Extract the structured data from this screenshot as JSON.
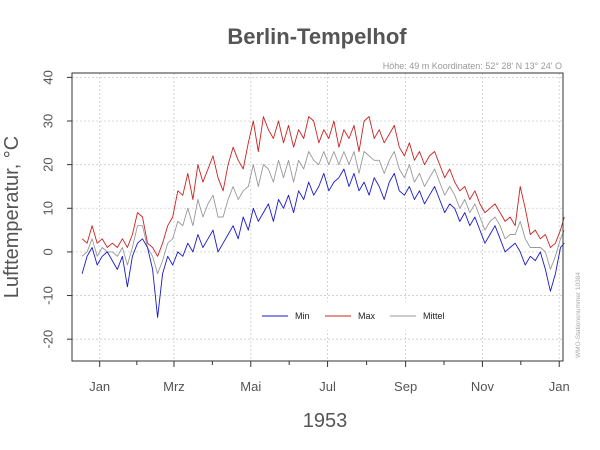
{
  "chart_data": {
    "type": "line",
    "title": "Berlin-Tempelhof",
    "subtitle": "Höhe: 49 m   Koordinaten: 52° 28' N  13° 24' O",
    "side_note": "WMO-Stationsnummer 10384",
    "xlabel": "1953",
    "ylabel": "Lufttemperatur, °C",
    "ylim": [
      -25,
      41
    ],
    "yticks": [
      -20,
      -10,
      0,
      10,
      20,
      30,
      40
    ],
    "xlim_day": [
      -7,
      383
    ],
    "xticks": [
      {
        "label": "Jan",
        "day": 15
      },
      {
        "label": "Mrz",
        "day": 74
      },
      {
        "label": "Mai",
        "day": 135
      },
      {
        "label": "Jul",
        "day": 196
      },
      {
        "label": "Sep",
        "day": 258
      },
      {
        "label": "Nov",
        "day": 319
      },
      {
        "label": "Jan",
        "day": 380
      }
    ],
    "grid": true,
    "legend_position": "bottom-center",
    "series": [
      {
        "name": "Min",
        "color": "#1a1acc",
        "x": [
          1,
          5,
          9,
          13,
          17,
          21,
          25,
          29,
          33,
          37,
          41,
          45,
          49,
          53,
          57,
          61,
          65,
          69,
          73,
          77,
          81,
          85,
          89,
          93,
          97,
          101,
          105,
          109,
          113,
          117,
          121,
          125,
          129,
          133,
          137,
          141,
          145,
          149,
          153,
          157,
          161,
          165,
          169,
          173,
          177,
          181,
          185,
          189,
          193,
          197,
          201,
          205,
          209,
          213,
          217,
          221,
          225,
          229,
          233,
          237,
          241,
          245,
          249,
          253,
          257,
          261,
          265,
          269,
          273,
          277,
          281,
          285,
          289,
          293,
          297,
          301,
          305,
          309,
          313,
          317,
          321,
          325,
          329,
          333,
          337,
          341,
          345,
          349,
          353,
          357,
          361,
          365,
          369,
          373,
          377,
          381,
          384
        ],
        "values": [
          -5,
          -1,
          1,
          -3,
          -1,
          0,
          -2,
          -4,
          -1,
          -8,
          -1,
          2,
          3,
          1,
          -4,
          -15,
          -5,
          -1,
          -3,
          0,
          -1,
          2,
          0,
          4,
          1,
          3,
          5,
          0,
          2,
          4,
          6,
          3,
          8,
          5,
          10,
          7,
          9,
          11,
          7,
          12,
          10,
          13,
          9,
          14,
          12,
          16,
          13,
          15,
          18,
          14,
          16,
          17,
          19,
          15,
          18,
          14,
          16,
          13,
          17,
          15,
          12,
          16,
          18,
          14,
          13,
          15,
          12,
          14,
          11,
          13,
          15,
          12,
          9,
          11,
          10,
          7,
          9,
          6,
          8,
          5,
          2,
          4,
          6,
          3,
          0,
          1,
          2,
          0,
          -3,
          -1,
          -2,
          0,
          -4,
          -9,
          -5,
          1,
          2
        ]
      },
      {
        "name": "Max",
        "color": "#cc2222",
        "x": [
          1,
          5,
          9,
          13,
          17,
          21,
          25,
          29,
          33,
          37,
          41,
          45,
          49,
          53,
          57,
          61,
          65,
          69,
          73,
          77,
          81,
          85,
          89,
          93,
          97,
          101,
          105,
          109,
          113,
          117,
          121,
          125,
          129,
          133,
          137,
          141,
          145,
          149,
          153,
          157,
          161,
          165,
          169,
          173,
          177,
          181,
          185,
          189,
          193,
          197,
          201,
          205,
          209,
          213,
          217,
          221,
          225,
          229,
          233,
          237,
          241,
          245,
          249,
          253,
          257,
          261,
          265,
          269,
          273,
          277,
          281,
          285,
          289,
          293,
          297,
          301,
          305,
          309,
          313,
          317,
          321,
          325,
          329,
          333,
          337,
          341,
          345,
          349,
          353,
          357,
          361,
          365,
          369,
          373,
          377,
          381,
          384
        ],
        "values": [
          3,
          2,
          6,
          2,
          3,
          1,
          2,
          1,
          3,
          1,
          4,
          9,
          8,
          2,
          1,
          -1,
          2,
          6,
          8,
          14,
          13,
          18,
          12,
          20,
          16,
          19,
          22,
          17,
          14,
          20,
          24,
          21,
          19,
          25,
          30,
          23,
          31,
          28,
          26,
          30,
          25,
          29,
          24,
          28,
          26,
          31,
          30,
          25,
          28,
          26,
          30,
          24,
          28,
          26,
          29,
          23,
          30,
          31,
          26,
          28,
          25,
          27,
          29,
          24,
          22,
          25,
          21,
          23,
          20,
          22,
          23,
          20,
          17,
          19,
          16,
          14,
          15,
          12,
          14,
          11,
          9,
          10,
          11,
          9,
          7,
          8,
          6,
          15,
          10,
          4,
          5,
          3,
          4,
          1,
          2,
          5,
          8
        ]
      },
      {
        "name": "Mittel",
        "color": "#999999",
        "x": [
          1,
          5,
          9,
          13,
          17,
          21,
          25,
          29,
          33,
          37,
          41,
          45,
          49,
          53,
          57,
          61,
          65,
          69,
          73,
          77,
          81,
          85,
          89,
          93,
          97,
          101,
          105,
          109,
          113,
          117,
          121,
          125,
          129,
          133,
          137,
          141,
          145,
          149,
          153,
          157,
          161,
          165,
          169,
          173,
          177,
          181,
          185,
          189,
          193,
          197,
          201,
          205,
          209,
          213,
          217,
          221,
          225,
          229,
          233,
          237,
          241,
          245,
          249,
          253,
          257,
          261,
          265,
          269,
          273,
          277,
          281,
          285,
          289,
          293,
          297,
          301,
          305,
          309,
          313,
          317,
          321,
          325,
          329,
          333,
          337,
          341,
          345,
          349,
          353,
          357,
          361,
          365,
          369,
          373,
          377,
          381,
          384
        ],
        "values": [
          -1,
          0,
          3,
          -1,
          1,
          0,
          0,
          -1,
          1,
          -3,
          1,
          6,
          6,
          1,
          -1,
          -5,
          -2,
          2,
          3,
          7,
          6,
          10,
          6,
          12,
          8,
          11,
          13,
          8,
          8,
          12,
          15,
          12,
          14,
          15,
          20,
          15,
          20,
          19,
          16,
          21,
          17,
          21,
          16,
          21,
          19,
          23,
          21,
          20,
          23,
          20,
          23,
          20,
          23,
          20,
          23,
          18,
          23,
          22,
          21,
          21,
          18,
          21,
          23,
          19,
          17,
          20,
          16,
          18,
          15,
          17,
          19,
          16,
          13,
          15,
          13,
          10,
          12,
          9,
          11,
          8,
          5,
          7,
          8,
          6,
          3,
          4,
          4,
          7,
          3,
          1,
          1,
          1,
          0,
          -4,
          -1,
          3,
          5
        ]
      }
    ]
  }
}
